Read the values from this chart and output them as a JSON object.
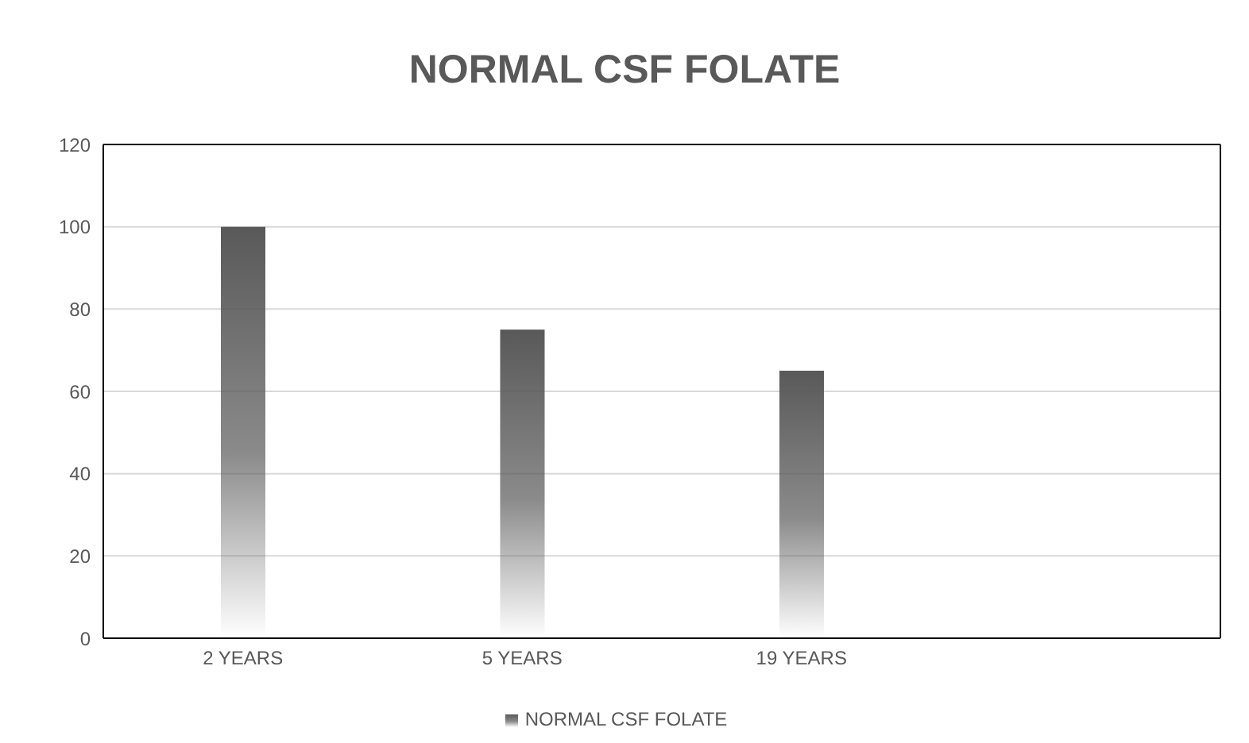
{
  "chart_data": {
    "type": "bar",
    "title": "NORMAL CSF FOLATE",
    "categories": [
      "2 YEARS",
      "5 YEARS",
      "19 YEARS",
      null
    ],
    "series": [
      {
        "name": "NORMAL CSF FOLATE",
        "color": "#595959",
        "values": [
          100,
          75,
          65,
          null
        ]
      }
    ],
    "ylim": [
      0,
      120
    ],
    "yticks": [
      0,
      20,
      40,
      60,
      80,
      100,
      120
    ],
    "grid": "y",
    "legend": "bottom"
  }
}
